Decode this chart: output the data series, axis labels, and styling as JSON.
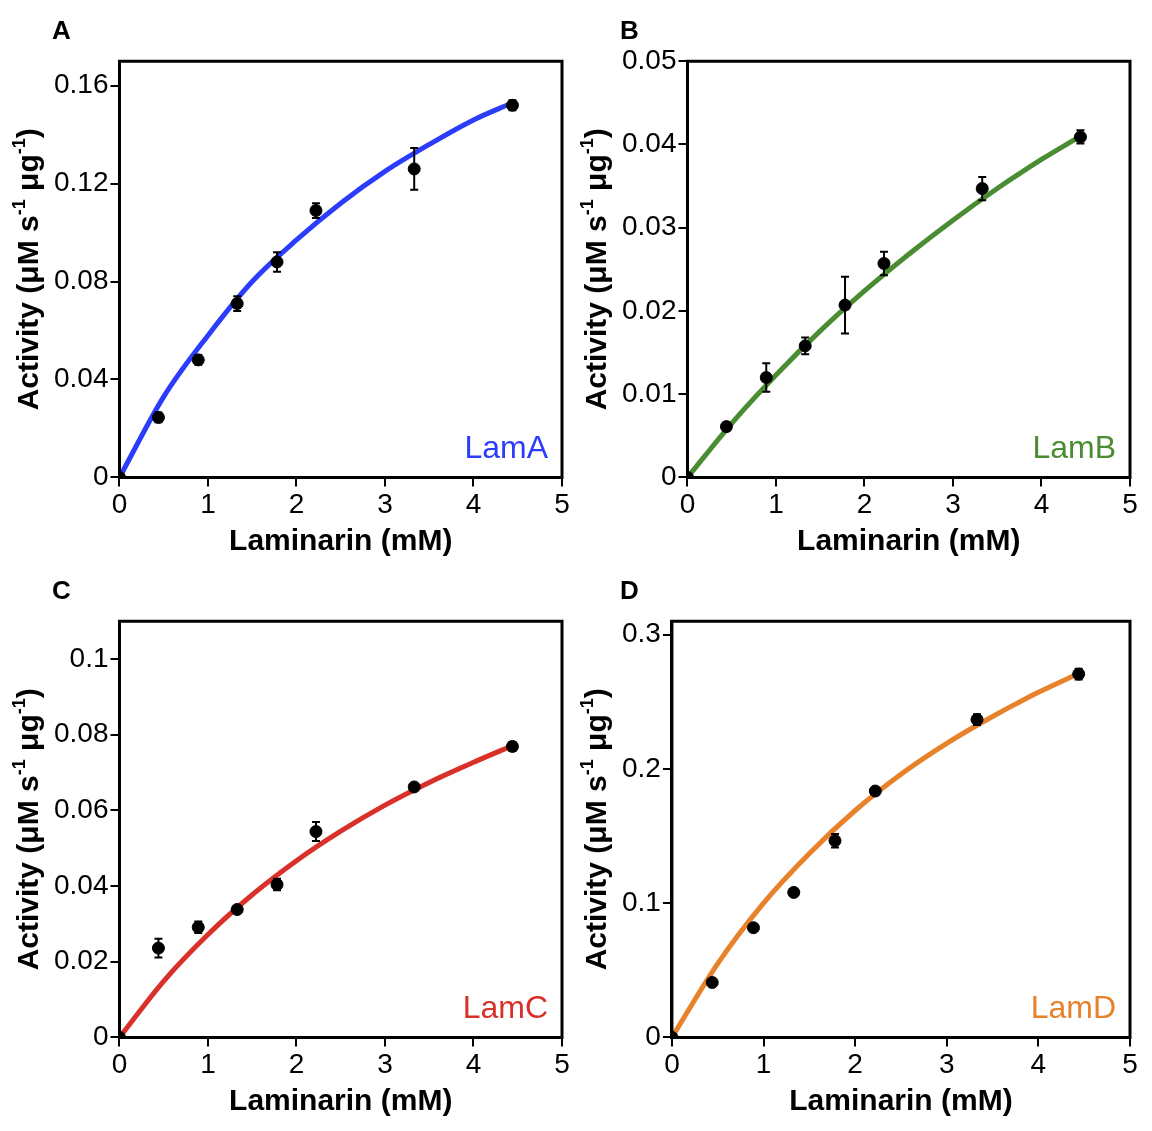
{
  "chart_data": [
    {
      "type": "scatter",
      "title": "A",
      "xlabel": "Laminarin (mM)",
      "ylabel": "Activity (μM s$^{-1}$ μg$^{-1}$)",
      "xlim": [
        0,
        5
      ],
      "xticks": [
        0,
        1,
        2,
        3,
        4,
        5
      ],
      "ylim": [
        0,
        0.17
      ],
      "yticks": [
        0,
        0.04,
        0.08,
        0.12,
        0.16
      ],
      "series": [
        {
          "marker": "circle",
          "color": "#000000",
          "x": [
            0,
            0.44,
            0.89,
            1.33,
            1.78,
            2.22,
            3.33,
            4.44
          ],
          "values": [
            0,
            0.0245,
            0.048,
            0.071,
            0.088,
            0.109,
            0.126,
            0.152
          ],
          "errors": [
            null,
            0.002,
            0.002,
            0.003,
            0.004,
            0.003,
            0.0085,
            0.002
          ]
        },
        {
          "type": "line",
          "name": "LamA",
          "color": "#2b3dfb",
          "x": [
            0,
            0.5,
            1,
            1.5,
            2,
            2.5,
            3,
            3.5,
            4,
            4.44
          ],
          "values": [
            0,
            0.033,
            0.058,
            0.08,
            0.097,
            0.112,
            0.125,
            0.136,
            0.146,
            0.153
          ]
        }
      ]
    },
    {
      "type": "scatter",
      "title": "B",
      "xlabel": "Laminarin (mM)",
      "ylabel": "Activity (μM s$^{-1}$ μg$^{-1}$)",
      "xlim": [
        0,
        5
      ],
      "xticks": [
        0,
        1,
        2,
        3,
        4,
        5
      ],
      "ylim": [
        0,
        0.05
      ],
      "yticks": [
        0,
        0.01,
        0.02,
        0.03,
        0.04,
        0.05
      ],
      "series": [
        {
          "marker": "circle",
          "color": "#000000",
          "x": [
            0,
            0.44,
            0.89,
            1.33,
            1.78,
            2.22,
            3.33,
            4.44
          ],
          "values": [
            0,
            0.0061,
            0.012,
            0.0158,
            0.0207,
            0.0257,
            0.0347,
            0.0409
          ],
          "errors": [
            null,
            0.0005,
            0.0017,
            0.001,
            0.0034,
            0.0014,
            0.0014,
            0.0008
          ]
        },
        {
          "type": "line",
          "name": "LamB",
          "color": "#4a8c32",
          "x": [
            0,
            0.5,
            1,
            1.5,
            2,
            2.5,
            3,
            3.5,
            4,
            4.44
          ],
          "values": [
            0,
            0.0065,
            0.0123,
            0.0176,
            0.0224,
            0.0268,
            0.0309,
            0.0347,
            0.0382,
            0.041
          ]
        }
      ]
    },
    {
      "type": "scatter",
      "title": "C",
      "xlabel": "Laminarin (mM)",
      "ylabel": "Activity (μM s$^{-1}$ μg$^{-1}$)",
      "xlim": [
        0,
        5
      ],
      "xticks": [
        0,
        1,
        2,
        3,
        4,
        5
      ],
      "ylim": [
        0,
        0.11
      ],
      "yticks": [
        0,
        0.02,
        0.04,
        0.06,
        0.08,
        0.1
      ],
      "series": [
        {
          "marker": "circle",
          "color": "#000000",
          "x": [
            0,
            0.44,
            0.89,
            1.33,
            1.78,
            2.22,
            3.33,
            4.44
          ],
          "values": [
            0,
            0.0236,
            0.0291,
            0.0338,
            0.0404,
            0.0544,
            0.0662,
            0.0769
          ],
          "errors": [
            null,
            0.0025,
            0.0015,
            null,
            0.0015,
            0.0025,
            null,
            0.0012
          ]
        },
        {
          "type": "line",
          "name": "LamC",
          "color": "#d9302a",
          "x": [
            0,
            0.5,
            1,
            1.5,
            2,
            2.5,
            3,
            3.5,
            4,
            4.44
          ],
          "values": [
            0,
            0.0149,
            0.0272,
            0.0377,
            0.0467,
            0.0545,
            0.0614,
            0.0674,
            0.0727,
            0.0771
          ]
        }
      ]
    },
    {
      "type": "scatter",
      "title": "D",
      "xlabel": "Laminarin (mM)",
      "ylabel": "Activity (μM s$^{-1}$ μg$^{-1}$)",
      "xlim": [
        0,
        5
      ],
      "xticks": [
        0,
        1,
        2,
        3,
        4,
        5
      ],
      "ylim": [
        0,
        0.31
      ],
      "yticks": [
        0,
        0.1,
        0.2,
        0.3
      ],
      "series": [
        {
          "marker": "circle",
          "color": "#000000",
          "x": [
            0,
            0.44,
            0.89,
            1.33,
            1.78,
            2.22,
            3.33,
            4.44
          ],
          "values": [
            0,
            0.0409,
            0.0817,
            0.108,
            0.1465,
            0.1835,
            0.2367,
            0.2706
          ],
          "errors": [
            null,
            null,
            null,
            null,
            0.005,
            null,
            0.004,
            0.004
          ]
        },
        {
          "type": "line",
          "name": "LamD",
          "color": "#e8822a",
          "x": [
            0,
            0.5,
            1,
            1.5,
            2,
            2.5,
            3,
            3.5,
            4,
            4.44
          ],
          "values": [
            0,
            0.055,
            0.1,
            0.137,
            0.169,
            0.196,
            0.219,
            0.239,
            0.257,
            0.271
          ]
        }
      ]
    }
  ]
}
